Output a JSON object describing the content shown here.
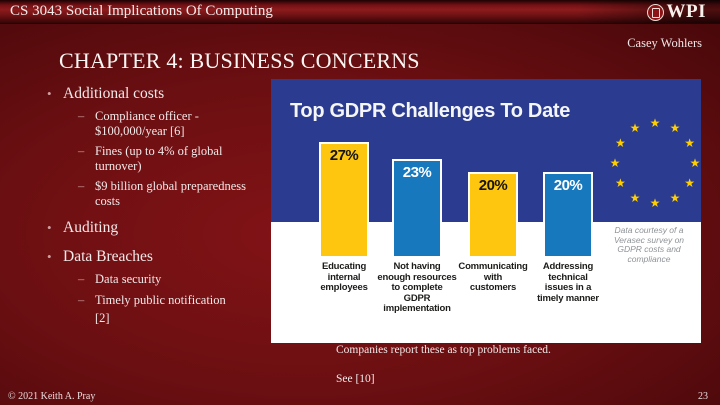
{
  "header": {
    "course_title": "CS 3043 Social Implications Of Computing",
    "logo_text": "WPI",
    "author": "Casey Wohlers"
  },
  "slide": {
    "title": "CHAPTER 4: BUSINESS CONCERNS",
    "bullets": [
      {
        "level": 1,
        "marker": "•",
        "text": "Additional costs"
      },
      {
        "level": 2,
        "marker": "–",
        "text": "Compliance officer - $100,000/year [6]"
      },
      {
        "level": 2,
        "marker": "–",
        "text": "Fines (up to 4% of global turnover)"
      },
      {
        "level": 2,
        "marker": "–",
        "text": "$9 billion global preparedness costs"
      },
      {
        "level": 1,
        "marker": "•",
        "text": "Auditing"
      },
      {
        "level": 1,
        "marker": "•",
        "text": "Data Breaches"
      },
      {
        "level": 2,
        "marker": "–",
        "text": "Data security"
      },
      {
        "level": 2,
        "marker": "–",
        "text": "Timely public notification"
      },
      {
        "level": 2,
        "marker": "",
        "text": "[2]"
      }
    ],
    "caption_line1": "Companies report these as top problems faced.",
    "caption_line2": "See [10]"
  },
  "footer": {
    "copyright": "© 2021 Keith A. Pray",
    "page_number": "23"
  },
  "chart_data": {
    "type": "bar",
    "title": "Top GDPR Challenges To Date",
    "categories": [
      "Educating internal employees",
      "Not having enough resources to complete GDPR implementation",
      "Communicating with customers",
      "Addressing technical issues in a timely manner"
    ],
    "category_lines": [
      [
        "Educating",
        "internal",
        "employees"
      ],
      [
        "Not having",
        "enough resources",
        "to complete",
        "GDPR",
        "implementation"
      ],
      [
        "Communicating",
        "with",
        "customers"
      ],
      [
        "Addressing",
        "technical",
        "issues in a",
        "timely manner"
      ]
    ],
    "values": [
      27,
      23,
      20,
      20
    ],
    "value_labels": [
      "27%",
      "23%",
      "20%",
      "20%"
    ],
    "unit": "%",
    "ylim": [
      0,
      30
    ],
    "grid": false,
    "legend": "none",
    "bar_colors": [
      "#ffc60f",
      "#1878be",
      "#ffc60f",
      "#1878be"
    ],
    "value_label_colors": [
      "#141414",
      "#ffffff",
      "#141414",
      "#ffffff"
    ],
    "background_color": "#2b3b8f",
    "decoration": "eu-flag-circle-of-12-stars",
    "star_color": "#fece00",
    "source_note": "Data courtesy of a Verasec survey on GDPR costs and compliance"
  },
  "colors": {
    "slide_background": "#6b0f12",
    "eu_blue": "#2b3b8f",
    "bar_blue": "#1878be",
    "bar_yellow": "#ffc60f"
  }
}
